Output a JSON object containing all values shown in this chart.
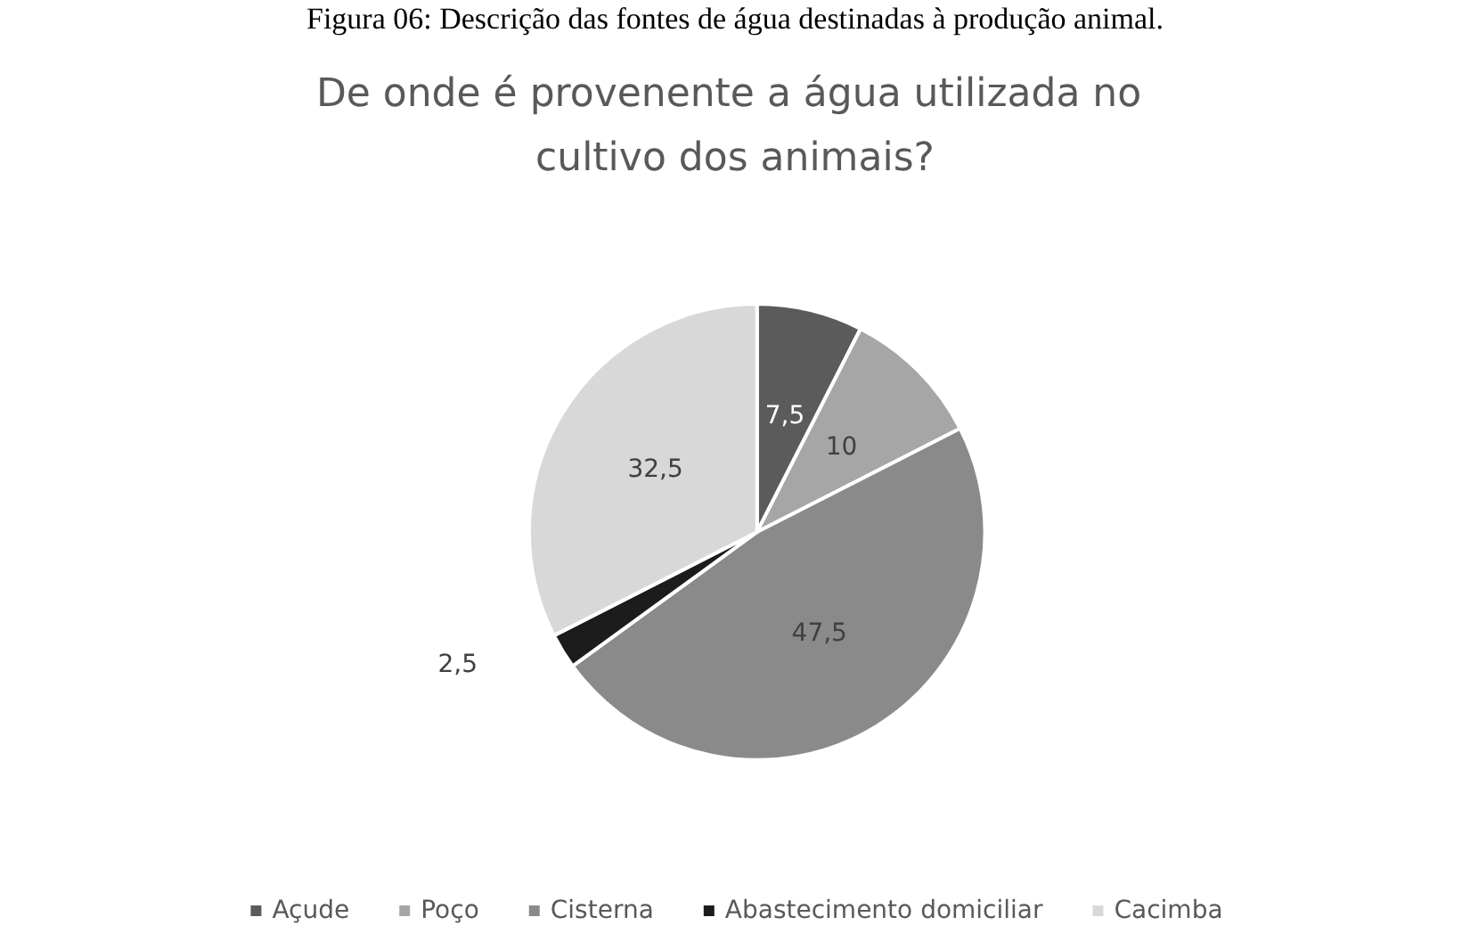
{
  "chart_data": {
    "type": "pie",
    "title": "De onde é provenente a água utilizada no cultivo dos animais?",
    "annotations": [
      "Figura 06: Descrição das fontes de água destinadas à produção animal."
    ],
    "categories": [
      "Açude",
      "Poço",
      "Cisterna",
      "Abastecimento domiciliar",
      "Cacimba"
    ],
    "values": [
      7.5,
      10,
      47.5,
      2.5,
      32.5
    ],
    "value_labels": [
      "7,5",
      "10",
      "47,5",
      "2,5",
      "32,5"
    ],
    "colors": [
      "#5b5b5b",
      "#a6a6a6",
      "#8a8a8a",
      "#1c1c1c",
      "#d8d8d8"
    ],
    "legend": "bottom"
  }
}
